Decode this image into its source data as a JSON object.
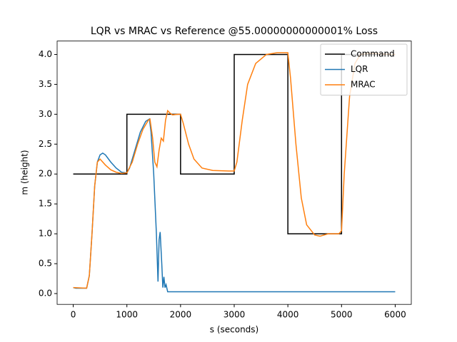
{
  "chart_data": {
    "type": "line",
    "title": "LQR vs MRAC vs Reference @55.00000000000001% Loss",
    "x_label": "s (seconds)",
    "y_label": "m (height)",
    "xlim": [
      -300,
      6300
    ],
    "ylim": [
      -0.181,
      4.225
    ],
    "xticks": [
      0,
      1000,
      2000,
      3000,
      4000,
      5000,
      6000
    ],
    "yticks": [
      {
        "value": 0,
        "label": "0.0"
      },
      0.5,
      {
        "value": 1,
        "label": "1.0"
      },
      1.5,
      {
        "value": 2,
        "label": "2.0"
      },
      2.5,
      {
        "value": 3,
        "label": "3.0"
      },
      3.5,
      {
        "value": 4,
        "label": "4.0"
      }
    ],
    "grid": false,
    "legend": "upper right",
    "series": [
      {
        "name": "Command",
        "color": "#000000",
        "x": [
          0,
          1000,
          1000,
          2000,
          2000,
          3000,
          3000,
          4000,
          4000,
          5000,
          5000,
          6000
        ],
        "values": [
          2,
          2,
          3,
          3,
          2,
          2,
          4,
          4,
          1,
          1,
          4,
          4
        ]
      },
      {
        "name": "LQR",
        "color": "#1f77b4",
        "x": [
          0,
          50,
          250,
          300,
          350,
          400,
          450,
          500,
          550,
          600,
          700,
          800,
          900,
          1000,
          1050,
          1150,
          1250,
          1350,
          1420,
          1450,
          1500,
          1550,
          1580,
          1600,
          1620,
          1650,
          1670,
          1690,
          1710,
          1730,
          1760,
          6000
        ],
        "values": [
          0.1,
          0.09,
          0.09,
          0.3,
          1.0,
          1.8,
          2.2,
          2.32,
          2.35,
          2.32,
          2.2,
          2.1,
          2.03,
          2.02,
          2.1,
          2.4,
          2.7,
          2.88,
          2.92,
          2.7,
          2.0,
          1.0,
          0.2,
          0.9,
          1.03,
          0.5,
          0.1,
          0.28,
          0.1,
          0.15,
          0.03,
          0.03
        ]
      },
      {
        "name": "MRAC",
        "color": "#ff7f0e",
        "x": [
          0,
          250,
          300,
          350,
          400,
          450,
          500,
          600,
          700,
          800,
          900,
          1000,
          1100,
          1200,
          1300,
          1400,
          1430,
          1480,
          1520,
          1560,
          1600,
          1640,
          1680,
          1720,
          1760,
          1800,
          1850,
          1950,
          2000,
          2050,
          2150,
          2250,
          2400,
          2600,
          2900,
          3000,
          3050,
          3150,
          3250,
          3400,
          3600,
          3800,
          4000,
          4050,
          4150,
          4250,
          4350,
          4500,
          4600,
          4750,
          4950,
          5000,
          5050,
          5150,
          5250,
          5350,
          5500,
          6000
        ],
        "values": [
          0.1,
          0.09,
          0.3,
          1.0,
          1.8,
          2.2,
          2.25,
          2.15,
          2.07,
          2.03,
          2.01,
          2.02,
          2.2,
          2.5,
          2.75,
          2.9,
          2.92,
          2.6,
          2.2,
          2.12,
          2.4,
          2.6,
          2.55,
          2.9,
          3.06,
          3.02,
          2.99,
          3.0,
          3.0,
          2.85,
          2.5,
          2.25,
          2.1,
          2.06,
          2.05,
          2.05,
          2.2,
          2.9,
          3.5,
          3.85,
          4.0,
          4.03,
          4.03,
          3.6,
          2.5,
          1.6,
          1.15,
          0.98,
          0.96,
          1.0,
          1.0,
          1.05,
          2.0,
          3.3,
          3.85,
          4.0,
          4.02,
          4.0
        ]
      }
    ]
  }
}
